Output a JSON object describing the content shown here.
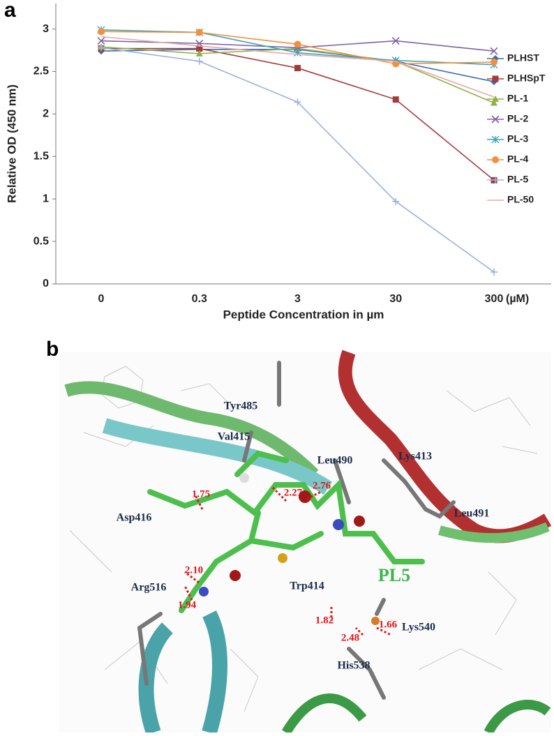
{
  "chart_data": {
    "type": "line",
    "ylabel": "Relative OD (450 nm)",
    "xlabel": "Peptide Concentration in µm",
    "x_unit_label": "(µM)",
    "categories": [
      "0",
      "0.3",
      "3",
      "30",
      "300"
    ],
    "ylim": [
      0,
      3.3
    ],
    "yticks": [
      0,
      0.5,
      1,
      1.5,
      2,
      2.5,
      3
    ],
    "legend": "right",
    "series": [
      {
        "name": "PLHST",
        "color": "#3d6bb5",
        "marker": "diamond",
        "values": [
          2.74,
          2.76,
          2.76,
          2.62,
          2.38
        ]
      },
      {
        "name": "PLHSpT",
        "color": "#a33b3a",
        "marker": "square",
        "values": [
          2.77,
          2.77,
          2.54,
          2.17,
          1.22
        ]
      },
      {
        "name": "PL-1",
        "color": "#8fb045",
        "marker": "triangle",
        "values": [
          2.79,
          2.71,
          2.77,
          2.62,
          2.13
        ]
      },
      {
        "name": "PL-2",
        "color": "#7f62a4",
        "marker": "x",
        "values": [
          2.86,
          2.83,
          2.78,
          2.86,
          2.74
        ]
      },
      {
        "name": "PL-3",
        "color": "#3ba3c0",
        "marker": "star",
        "values": [
          2.99,
          2.96,
          2.72,
          2.63,
          2.58
        ]
      },
      {
        "name": "PL-4",
        "color": "#f1913b",
        "marker": "circle",
        "values": [
          2.97,
          2.96,
          2.82,
          2.59,
          2.61
        ]
      },
      {
        "name": "PL-5",
        "color": "#9bb3dc",
        "marker": "plus",
        "values": [
          2.78,
          2.62,
          2.14,
          0.97,
          0.14
        ]
      },
      {
        "name": "PL-50",
        "color": "#e5a8a6",
        "values": [
          2.91,
          2.8,
          2.7,
          2.62,
          2.2
        ]
      }
    ]
  },
  "figure": {
    "panel_labels": [
      "a",
      "b"
    ],
    "residue_labels": [
      "Tyr485",
      "Val415",
      "Leu490",
      "Lys413",
      "Leu491",
      "Asp416",
      "Arg516",
      "Trp414",
      "Lys540",
      "His538"
    ],
    "ligand_label": "PL5",
    "distance_labels": [
      "1.75",
      "2.27",
      "2.76",
      "2.10",
      "1.94",
      "1.82",
      "1.66",
      "2.48"
    ]
  }
}
